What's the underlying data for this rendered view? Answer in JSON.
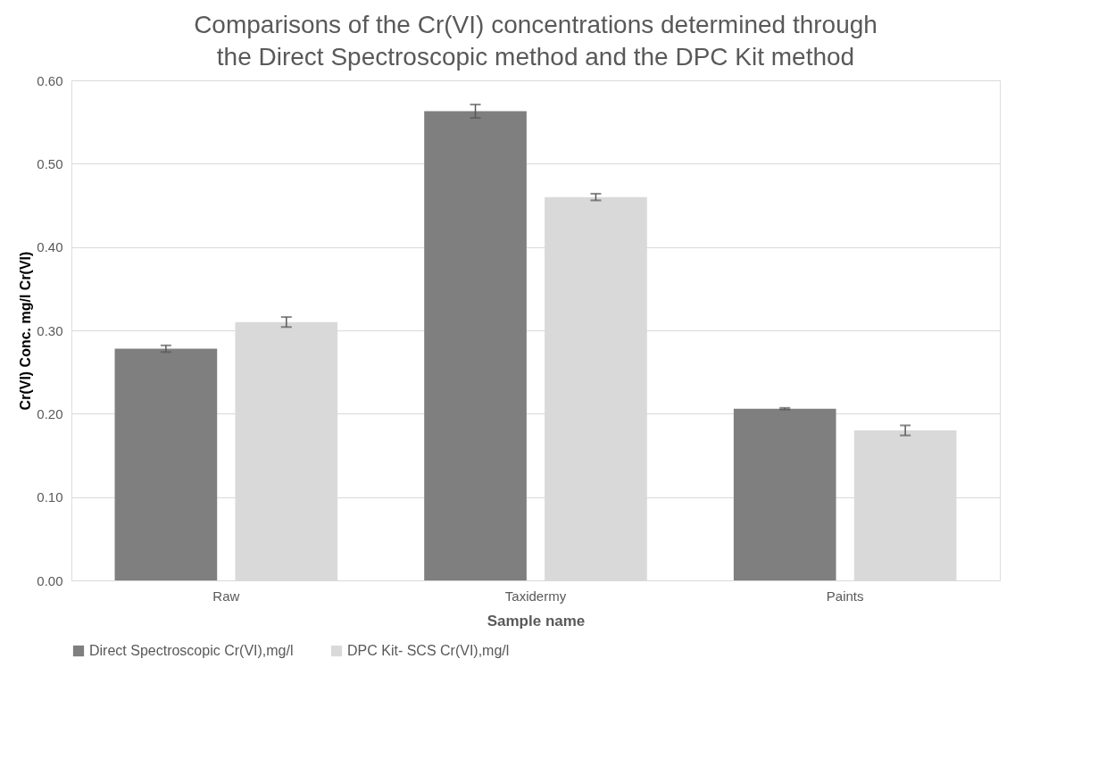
{
  "chart_data": {
    "type": "bar",
    "title": "Comparisons of the Cr(VI) concentrations determined through the Direct Spectroscopic method and the DPC Kit method",
    "xlabel": "Sample name",
    "ylabel": "Cr(VI) Conc. mg/l Cr(VI)",
    "categories": [
      "Raw",
      "Taxidermy",
      "Paints"
    ],
    "series": [
      {
        "name": "Direct Spectroscopic Cr(VI),mg/l",
        "color": "#7f7f7f",
        "values": [
          0.278,
          0.563,
          0.206
        ],
        "errors": [
          0.004,
          0.008,
          0.001
        ]
      },
      {
        "name": "DPC Kit- SCS Cr(VI),mg/l",
        "color": "#d9d9d9",
        "values": [
          0.31,
          0.46,
          0.18
        ],
        "errors": [
          0.006,
          0.004,
          0.006
        ]
      }
    ],
    "ylim": [
      0,
      0.6
    ],
    "yticks": [
      {
        "value": 0,
        "label": "0.00"
      },
      {
        "value": 0.1,
        "label": "0.10"
      },
      {
        "value": 0.2,
        "label": "0.20"
      },
      {
        "value": 0.3,
        "label": "0.30"
      },
      {
        "value": 0.4,
        "label": "0.40"
      },
      {
        "value": 0.5,
        "label": "0.50"
      },
      {
        "value": 0.6,
        "label": "0.60"
      }
    ],
    "grid": "y",
    "legend": "bottom"
  }
}
